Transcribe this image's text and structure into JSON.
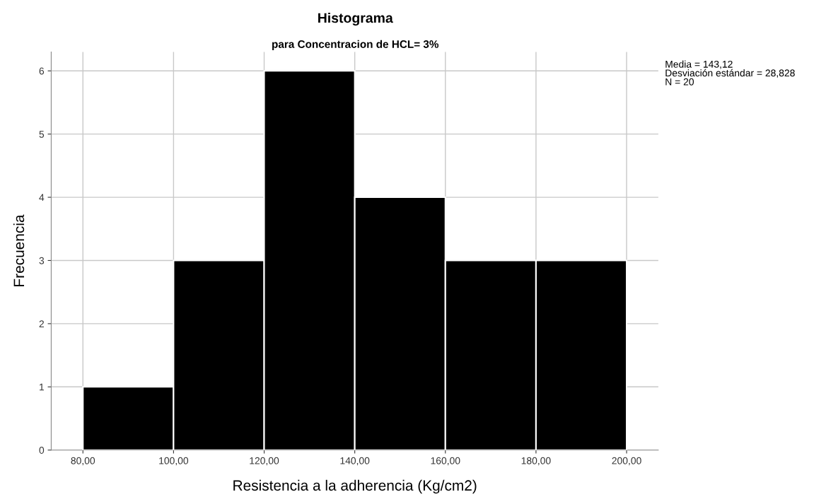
{
  "chart_data": {
    "type": "histogram",
    "title": "Histograma",
    "subtitle": "para Concentracion de HCL= 3%",
    "xlabel": "Resistencia a la adherencia (Kg/cm2)",
    "ylabel": "Frecuencia",
    "bins": [
      80,
      100,
      120,
      140,
      160,
      180,
      200
    ],
    "values": [
      1,
      3,
      6,
      4,
      3,
      3
    ],
    "color": "#000000",
    "xlim": [
      73,
      207
    ],
    "xticks": [
      {
        "value": 80,
        "label": "80,00"
      },
      {
        "value": 100,
        "label": "100,00"
      },
      {
        "value": 120,
        "label": "120,00"
      },
      {
        "value": 140,
        "label": "140,00"
      },
      {
        "value": 160,
        "label": "160,00"
      },
      {
        "value": 180,
        "label": "180,00"
      },
      {
        "value": 200,
        "label": "200,00"
      }
    ],
    "ylim": [
      0,
      6.3
    ],
    "yticks": [
      0,
      1,
      2,
      3,
      4,
      5,
      6
    ],
    "grid": true,
    "annotations": [
      "Media = 143,12\nDesviación estándar = 28,828\nN = 20"
    ]
  }
}
